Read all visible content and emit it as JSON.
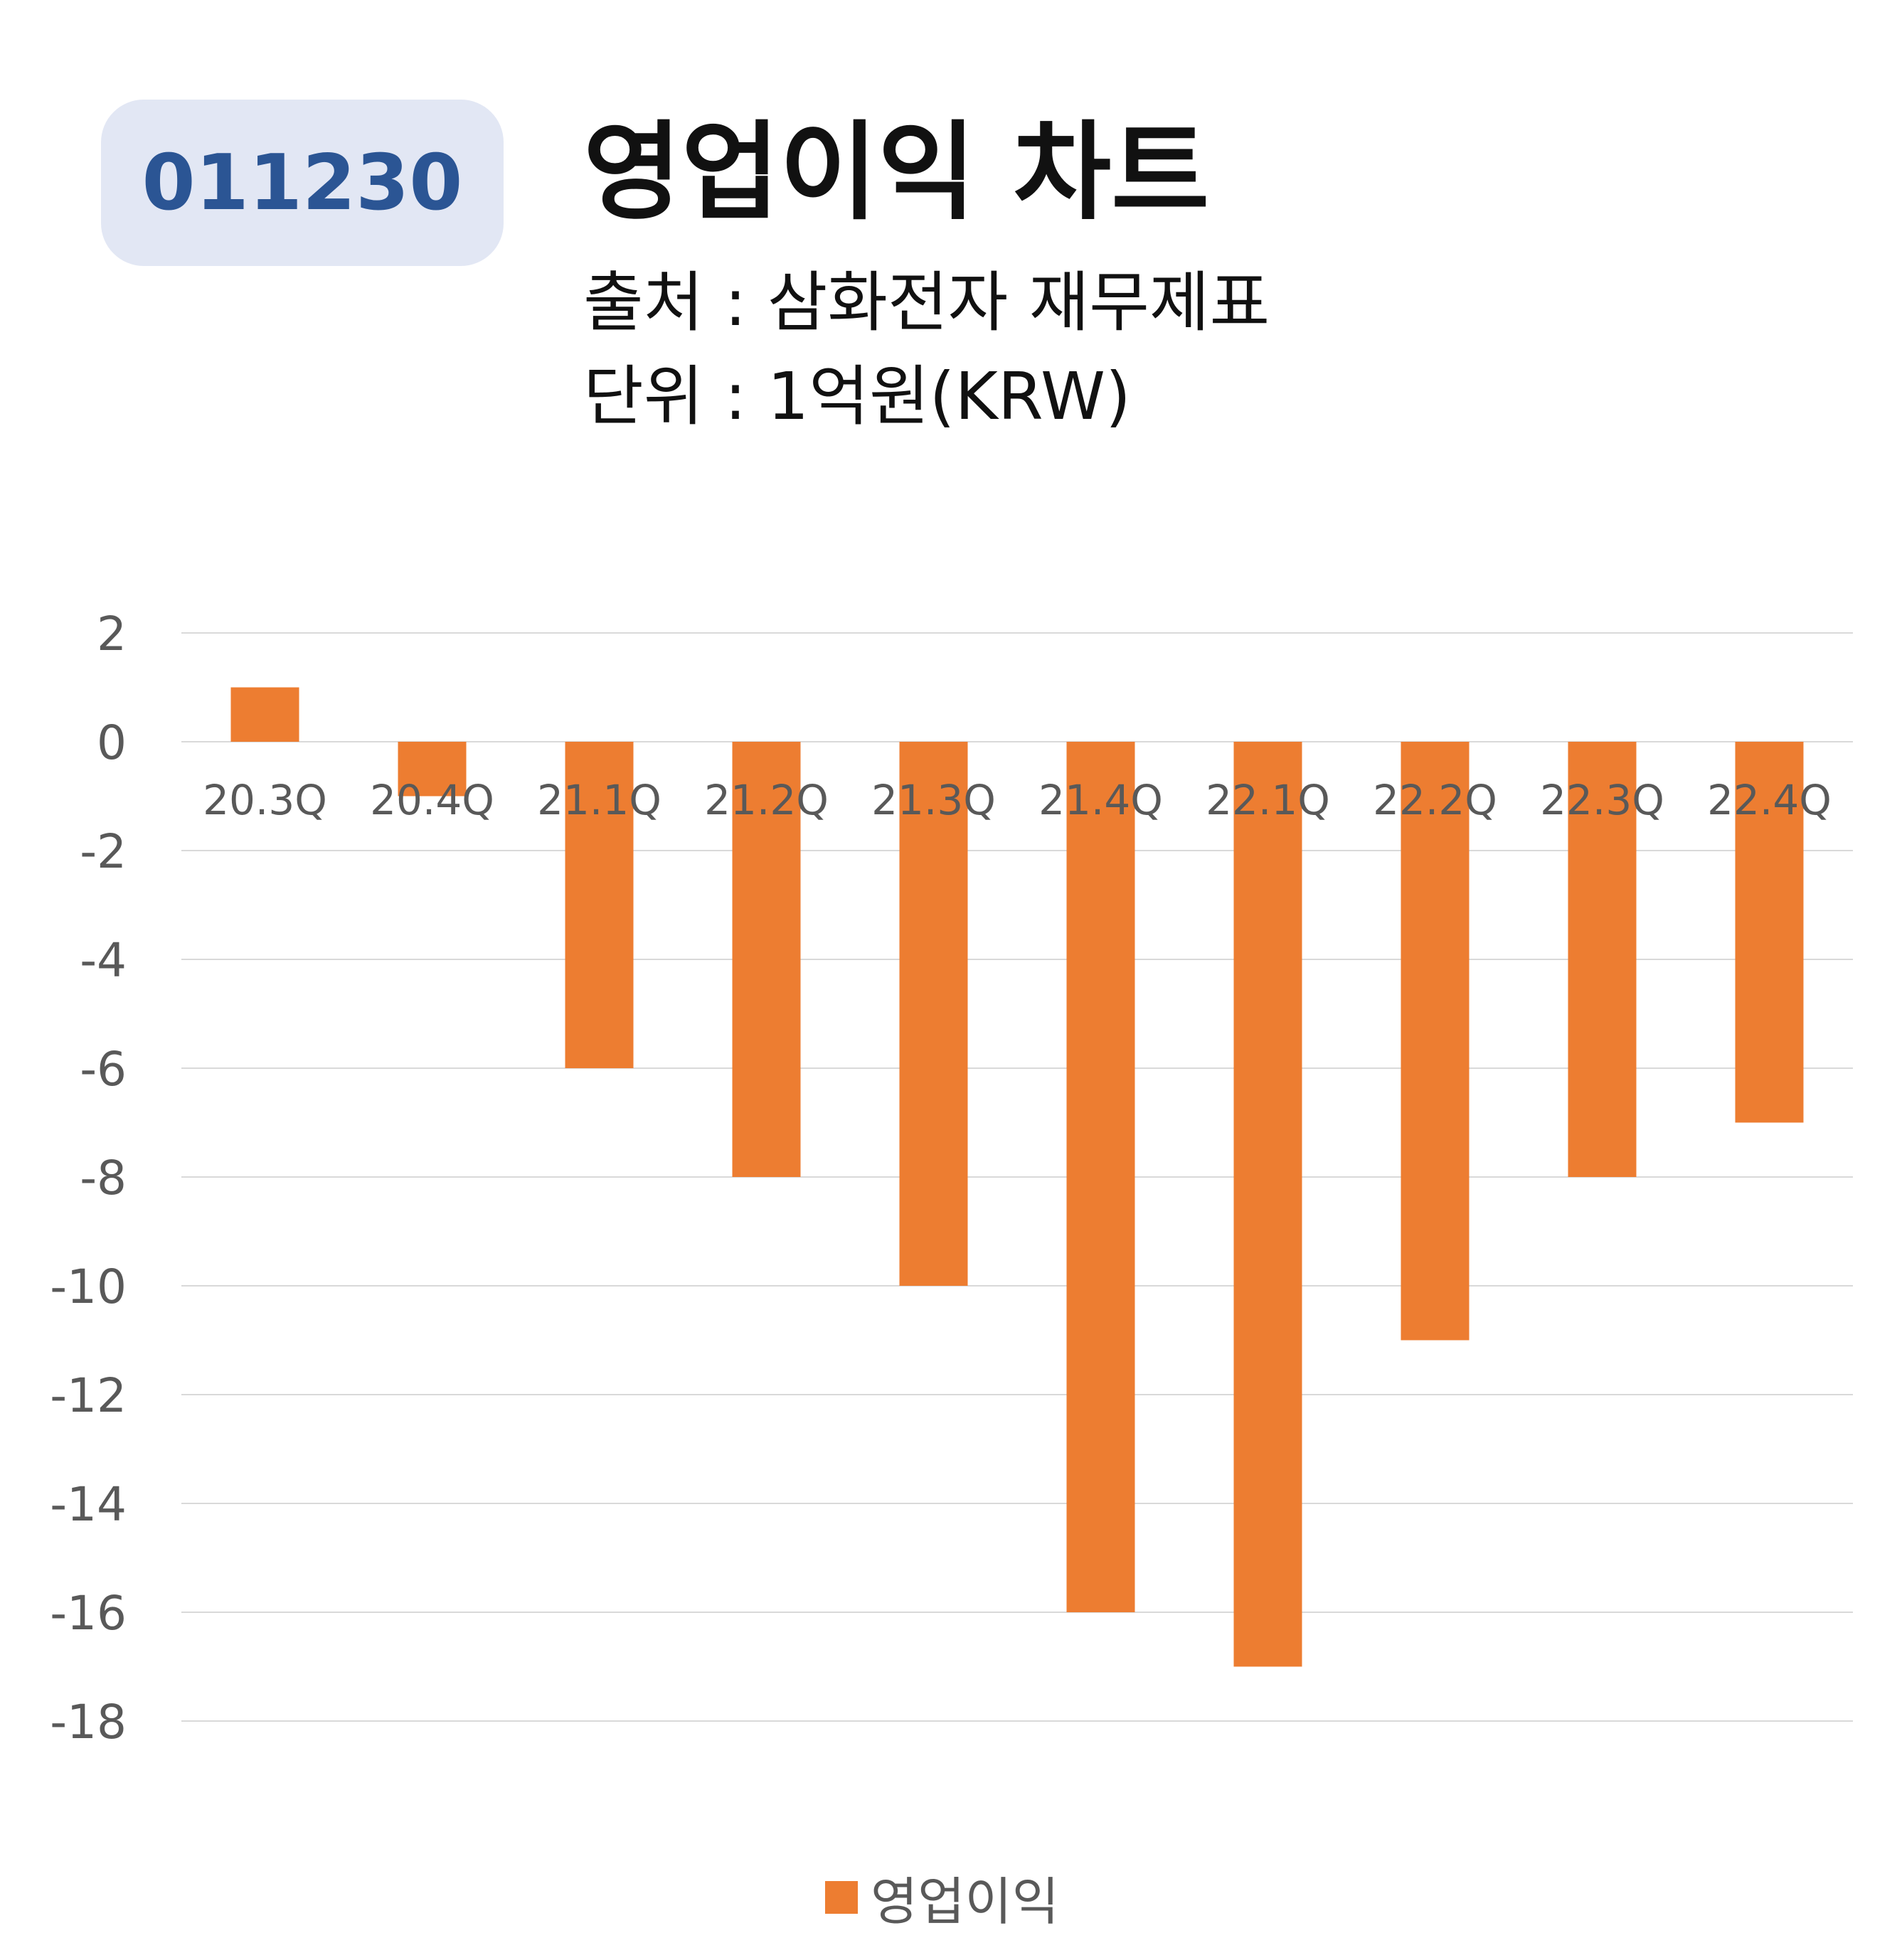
{
  "badge": {
    "code": "011230"
  },
  "header": {
    "title": "영업이익 차트",
    "source": "출처 : 삼화전자 재무제표",
    "unit": "단위 : 1억원(KRW)"
  },
  "colors": {
    "bar": "#ed7d31",
    "grid": "#d9d9d9",
    "axis_text": "#595959",
    "badge_bg": "#e2e7f4",
    "badge_text": "#2b5594"
  },
  "chart_data": {
    "type": "bar",
    "categories": [
      "20.3Q",
      "20.4Q",
      "21.1Q",
      "21.2Q",
      "21.3Q",
      "21.4Q",
      "22.1Q",
      "22.2Q",
      "22.3Q",
      "22.4Q"
    ],
    "series": [
      {
        "name": "영업이익",
        "values": [
          1,
          -1,
          -6,
          -8,
          -10,
          -16,
          -17,
          -11,
          -8,
          -7
        ]
      }
    ],
    "ylim": [
      -18,
      2
    ],
    "yticks": [
      2,
      0,
      -2,
      -4,
      -6,
      -8,
      -10,
      -12,
      -14,
      -16,
      -18
    ],
    "grid": true,
    "legend_position": "bottom"
  }
}
